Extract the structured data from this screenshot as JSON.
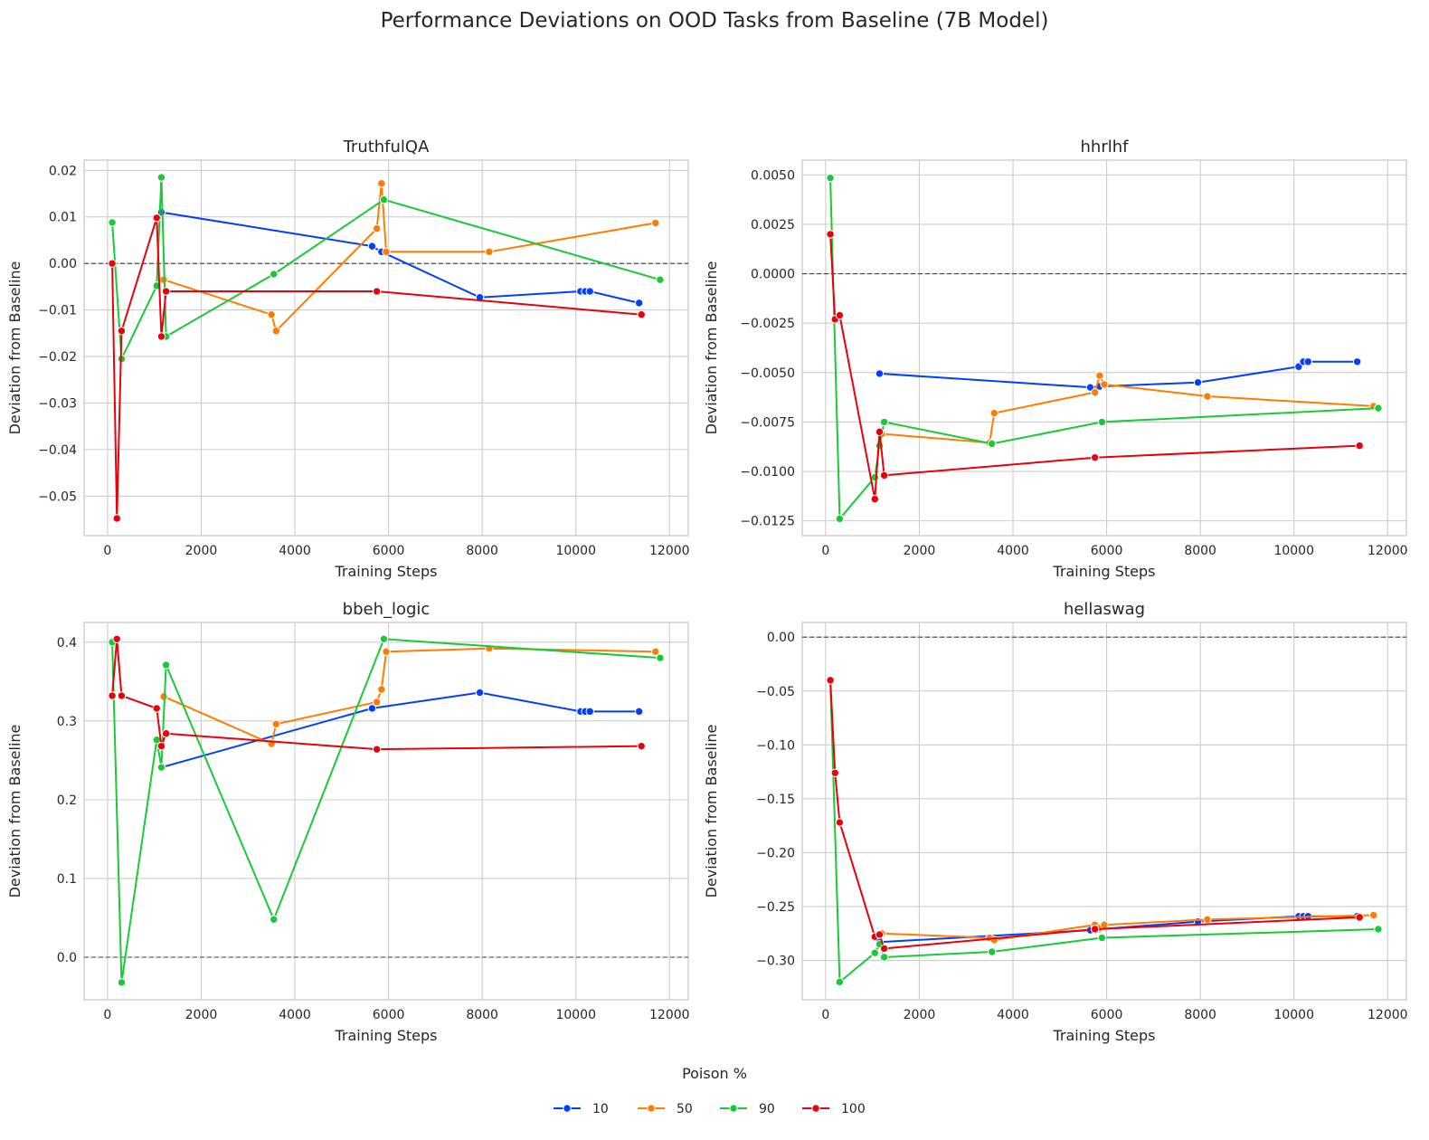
{
  "chart_data": {
    "type": "line",
    "title": "Performance Deviations on OOD Tasks from Baseline (7B Model)",
    "legend": {
      "title": "Poison %",
      "placement": "bottom-center",
      "entries": [
        {
          "label": "10",
          "color": "#023eff"
        },
        {
          "label": "50",
          "color": "#ff7c00"
        },
        {
          "label": "90",
          "color": "#1ac938"
        },
        {
          "label": "100",
          "color": "#e8000b"
        }
      ]
    },
    "panels": [
      {
        "title": "TruthfulQA",
        "xlabel": "Training Steps",
        "ylabel": "Deviation from Baseline",
        "xlim": [
          -500,
          12400
        ],
        "ylim": [
          -0.0585,
          0.0222
        ],
        "xticks": [
          0,
          2000,
          4000,
          6000,
          8000,
          10000,
          12000
        ],
        "xtick_labels": [
          "0",
          "2000",
          "4000",
          "6000",
          "8000",
          "10000",
          "12000"
        ],
        "yticks": [
          -0.05,
          -0.04,
          -0.03,
          -0.02,
          -0.01,
          0,
          0.01,
          0.02
        ],
        "ytick_labels": [
          "−0.05",
          "−0.04",
          "−0.03",
          "−0.02",
          "−0.01",
          "0.00",
          "0.01",
          "0.02"
        ],
        "baseline": 0,
        "series": [
          {
            "name": "10",
            "x": [
              1150,
              5650,
              5850,
              7950,
              10100,
              10200,
              10300,
              11350
            ],
            "y": [
              0.011,
              0.0037,
              0.0025,
              -0.0073,
              -0.006,
              -0.006,
              -0.006,
              -0.0085
            ]
          },
          {
            "name": "50",
            "x": [
              1200,
              3500,
              3600,
              5750,
              5850,
              5950,
              8150,
              11700
            ],
            "y": [
              -0.0035,
              -0.011,
              -0.0145,
              0.0075,
              0.0172,
              0.0025,
              0.0025,
              0.0087
            ]
          },
          {
            "name": "90",
            "x": [
              100,
              300,
              1050,
              1150,
              1250,
              3550,
              5900,
              11800
            ],
            "y": [
              0.0088,
              -0.0205,
              -0.0048,
              0.0185,
              -0.0157,
              -0.0023,
              0.0137,
              -0.0035
            ]
          },
          {
            "name": "100",
            "x": [
              100,
              200,
              300,
              1050,
              1150,
              1250,
              5750,
              11400
            ],
            "y": [
              0.0,
              -0.0548,
              -0.0145,
              0.0098,
              -0.0157,
              -0.006,
              -0.006,
              -0.011
            ]
          }
        ]
      },
      {
        "title": "hhrlhf",
        "xlabel": "Training Steps",
        "ylabel": "Deviation from Baseline",
        "xlim": [
          -500,
          12400
        ],
        "ylim": [
          -0.01325,
          0.00575
        ],
        "xticks": [
          0,
          2000,
          4000,
          6000,
          8000,
          10000,
          12000
        ],
        "xtick_labels": [
          "0",
          "2000",
          "4000",
          "6000",
          "8000",
          "10000",
          "12000"
        ],
        "yticks": [
          -0.0125,
          -0.01,
          -0.0075,
          -0.005,
          -0.0025,
          0,
          0.0025,
          0.005
        ],
        "ytick_labels": [
          "−0.0125",
          "−0.0100",
          "−0.0075",
          "−0.0050",
          "−0.0025",
          "0.0000",
          "0.0025",
          "0.0050"
        ],
        "baseline": 0,
        "series": [
          {
            "name": "10",
            "x": [
              1150,
              5650,
              5850,
              7950,
              10100,
              10200,
              10300,
              11350
            ],
            "y": [
              -0.00505,
              -0.00575,
              -0.0057,
              -0.0055,
              -0.0047,
              -0.00445,
              -0.00445,
              -0.00445
            ]
          },
          {
            "name": "50",
            "x": [
              1200,
              3500,
              3600,
              5750,
              5850,
              5950,
              8150,
              11700
            ],
            "y": [
              -0.0081,
              -0.00855,
              -0.00705,
              -0.006,
              -0.00515,
              -0.0056,
              -0.0062,
              -0.0067
            ]
          },
          {
            "name": "90",
            "x": [
              100,
              300,
              1050,
              1150,
              1250,
              3550,
              5900,
              11800
            ],
            "y": [
              0.00485,
              -0.0124,
              -0.0103,
              -0.0087,
              -0.0075,
              -0.0086,
              -0.0075,
              -0.0068
            ]
          },
          {
            "name": "100",
            "x": [
              100,
              200,
              300,
              1050,
              1150,
              1250,
              5750,
              11400
            ],
            "y": [
              0.002,
              -0.0023,
              -0.0021,
              -0.0114,
              -0.008,
              -0.0102,
              -0.0093,
              -0.0087
            ]
          }
        ]
      },
      {
        "title": "bbeh_logic",
        "xlabel": "Training Steps",
        "ylabel": "Deviation from Baseline",
        "xlim": [
          -500,
          12400
        ],
        "ylim": [
          -0.054,
          0.425
        ],
        "xticks": [
          0,
          2000,
          4000,
          6000,
          8000,
          10000,
          12000
        ],
        "xtick_labels": [
          "0",
          "2000",
          "4000",
          "6000",
          "8000",
          "10000",
          "12000"
        ],
        "yticks": [
          0,
          0.1,
          0.2,
          0.3,
          0.4
        ],
        "ytick_labels": [
          "0.0",
          "0.1",
          "0.2",
          "0.3",
          "0.4"
        ],
        "baseline": 0,
        "series": [
          {
            "name": "10",
            "x": [
              1150,
              5650,
              7950,
              10100,
              10200,
              10300,
              11350
            ],
            "y": [
              0.241,
              0.316,
              0.336,
              0.312,
              0.312,
              0.312,
              0.312
            ]
          },
          {
            "name": "50",
            "x": [
              1200,
              3500,
              3600,
              5750,
              5850,
              5950,
              8150,
              11700
            ],
            "y": [
              0.331,
              0.271,
              0.296,
              0.324,
              0.34,
              0.388,
              0.392,
              0.388
            ]
          },
          {
            "name": "90",
            "x": [
              100,
              300,
              1050,
              1150,
              1250,
              3550,
              5900,
              11800
            ],
            "y": [
              0.4,
              -0.032,
              0.276,
              0.241,
              0.371,
              0.048,
              0.404,
              0.38
            ]
          },
          {
            "name": "100",
            "x": [
              100,
              200,
              300,
              1050,
              1150,
              1250,
              5750,
              11400
            ],
            "y": [
              0.332,
              0.404,
              0.332,
              0.316,
              0.268,
              0.284,
              0.264,
              0.268
            ]
          }
        ]
      },
      {
        "title": "hellaswag",
        "xlabel": "Training Steps",
        "ylabel": "Deviation from Baseline",
        "xlim": [
          -500,
          12400
        ],
        "ylim": [
          -0.3365,
          0.0136
        ],
        "xticks": [
          0,
          2000,
          4000,
          6000,
          8000,
          10000,
          12000
        ],
        "xtick_labels": [
          "0",
          "2000",
          "4000",
          "6000",
          "8000",
          "10000",
          "12000"
        ],
        "yticks": [
          -0.3,
          -0.25,
          -0.2,
          -0.15,
          -0.1,
          -0.05,
          0
        ],
        "ytick_labels": [
          "−0.30",
          "−0.25",
          "−0.20",
          "−0.15",
          "−0.10",
          "−0.05",
          "0.00"
        ],
        "baseline": 0,
        "series": [
          {
            "name": "10",
            "x": [
              1150,
              5650,
              5850,
              7950,
              10100,
              10200,
              10300,
              11350
            ],
            "y": [
              -0.283,
              -0.272,
              -0.271,
              -0.264,
              -0.259,
              -0.259,
              -0.259,
              -0.259
            ]
          },
          {
            "name": "50",
            "x": [
              1200,
              3500,
              3600,
              5750,
              5850,
              5950,
              8150,
              11700
            ],
            "y": [
              -0.275,
              -0.279,
              -0.281,
              -0.267,
              -0.27,
              -0.267,
              -0.262,
              -0.258
            ]
          },
          {
            "name": "90",
            "x": [
              100,
              300,
              1050,
              1150,
              1250,
              3550,
              5900,
              11800
            ],
            "y": [
              -0.04,
              -0.32,
              -0.293,
              -0.285,
              -0.297,
              -0.292,
              -0.279,
              -0.271
            ]
          },
          {
            "name": "100",
            "x": [
              100,
              200,
              300,
              1050,
              1150,
              1250,
              5750,
              11400
            ],
            "y": [
              -0.04,
              -0.126,
              -0.172,
              -0.278,
              -0.276,
              -0.289,
              -0.271,
              -0.26
            ]
          }
        ]
      }
    ]
  }
}
